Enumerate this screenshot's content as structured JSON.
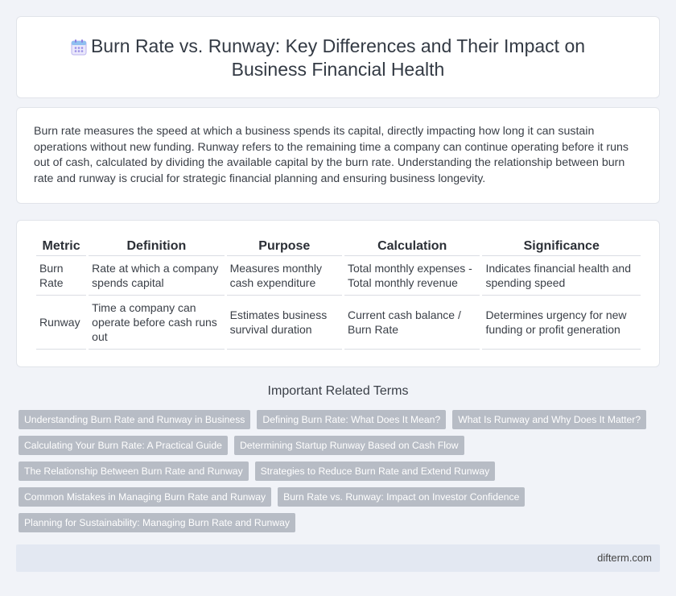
{
  "header": {
    "icon": "calendar-icon",
    "title_line1": "Burn Rate vs. Runway: Key Differences and Their Impact on",
    "title_line2": "Business Financial Health"
  },
  "intro": {
    "text": "Burn rate measures the speed at which a business spends its capital, directly impacting how long it can sustain operations without new funding. Runway refers to the remaining time a company can continue operating before it runs out of cash, calculated by dividing the available capital by the burn rate. Understanding the relationship between burn rate and runway is crucial for strategic financial planning and ensuring business longevity."
  },
  "table": {
    "headers": [
      "Metric",
      "Definition",
      "Purpose",
      "Calculation",
      "Significance"
    ],
    "rows": [
      [
        "Burn Rate",
        "Rate at which a company spends capital",
        "Measures monthly cash expenditure",
        "Total monthly expenses - Total monthly revenue",
        "Indicates financial health and spending speed"
      ],
      [
        "Runway",
        "Time a company can operate before cash runs out",
        "Estimates business survival duration",
        "Current cash balance / Burn Rate",
        "Determines urgency for new funding or profit generation"
      ]
    ]
  },
  "related": {
    "heading": "Important Related Terms",
    "tags": [
      "Understanding Burn Rate and Runway in Business",
      "Defining Burn Rate: What Does It Mean?",
      "What Is Runway and Why Does It Matter?",
      "Calculating Your Burn Rate: A Practical Guide",
      "Determining Startup Runway Based on Cash Flow",
      "The Relationship Between Burn Rate and Runway",
      "Strategies to Reduce Burn Rate and Extend Runway",
      "Common Mistakes in Managing Burn Rate and Runway",
      "Burn Rate vs. Runway: Impact on Investor Confidence",
      "Planning for Sustainability: Managing Burn Rate and Runway"
    ]
  },
  "footer": {
    "site": "difterm.com"
  },
  "colors": {
    "background": "#f1f3f8",
    "tag_background": "#b7bcc5",
    "footer_background": "#e3e8f2",
    "icon_accent": "#7b6fd6"
  }
}
